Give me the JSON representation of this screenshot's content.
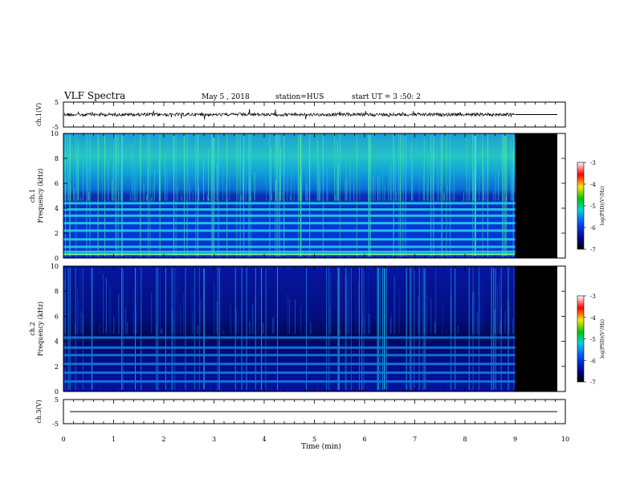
{
  "header": {
    "title": "VLF Spectra",
    "date": "May 5 , 2018",
    "station": "station=HUS",
    "start": "start UT = 3 :50: 2"
  },
  "colors": {
    "spectrum_low": "#000a8c",
    "spectrum_mid": "#00d2dc",
    "spectrum_high": "#ff0000",
    "no_data": "#000000"
  },
  "chart_data": [
    {
      "type": "line",
      "name": "ch1-waveform",
      "ylabel": "ch.1(V)",
      "ylim": [
        -5,
        5
      ],
      "yticks": [
        5,
        -5
      ],
      "xlim": [
        0,
        10
      ],
      "data_end_min": 9.0,
      "baseline": 0
    },
    {
      "type": "heatmap",
      "name": "ch1-spectrogram",
      "ylabel_channel": "ch.1",
      "ylabel": "Frequency (kHz)",
      "ylim": [
        0,
        10
      ],
      "yticks": [
        0,
        2,
        4,
        6,
        8,
        10
      ],
      "xlim": [
        0,
        10
      ],
      "data_end_min": 9.0,
      "colorbar": {
        "label": "log(PSD)(V²/Hz)",
        "ticks": [
          -3,
          -4,
          -5,
          -6,
          -7
        ]
      },
      "bands_khz": [
        0.5,
        0.9,
        1.5,
        2.2,
        2.8,
        3.4,
        3.9,
        4.4
      ]
    },
    {
      "type": "heatmap",
      "name": "ch2-spectrogram",
      "ylabel_channel": "ch.2",
      "ylabel": "Frequency (kHz)",
      "ylim": [
        0,
        10
      ],
      "yticks": [
        0,
        2,
        4,
        6,
        8,
        10
      ],
      "xlim": [
        0,
        10
      ],
      "data_end_min": 9.0,
      "colorbar": {
        "label": "log(PSD)(V²/Hz)",
        "ticks": [
          -3,
          -4,
          -5,
          -6,
          -7
        ]
      },
      "bands_khz": [
        0.8,
        1.5,
        2.2,
        2.9,
        3.5,
        4.3
      ]
    },
    {
      "type": "line",
      "name": "ch3-waveform",
      "ylabel": "ch.3(V)",
      "ylim": [
        -5,
        5
      ],
      "yticks": [
        5,
        -5
      ],
      "xlim": [
        0,
        10
      ],
      "baseline": 0
    }
  ],
  "xaxis": {
    "label": "Time (min)",
    "ticks": [
      0,
      1,
      2,
      3,
      4,
      5,
      6,
      7,
      8,
      9,
      10
    ]
  }
}
